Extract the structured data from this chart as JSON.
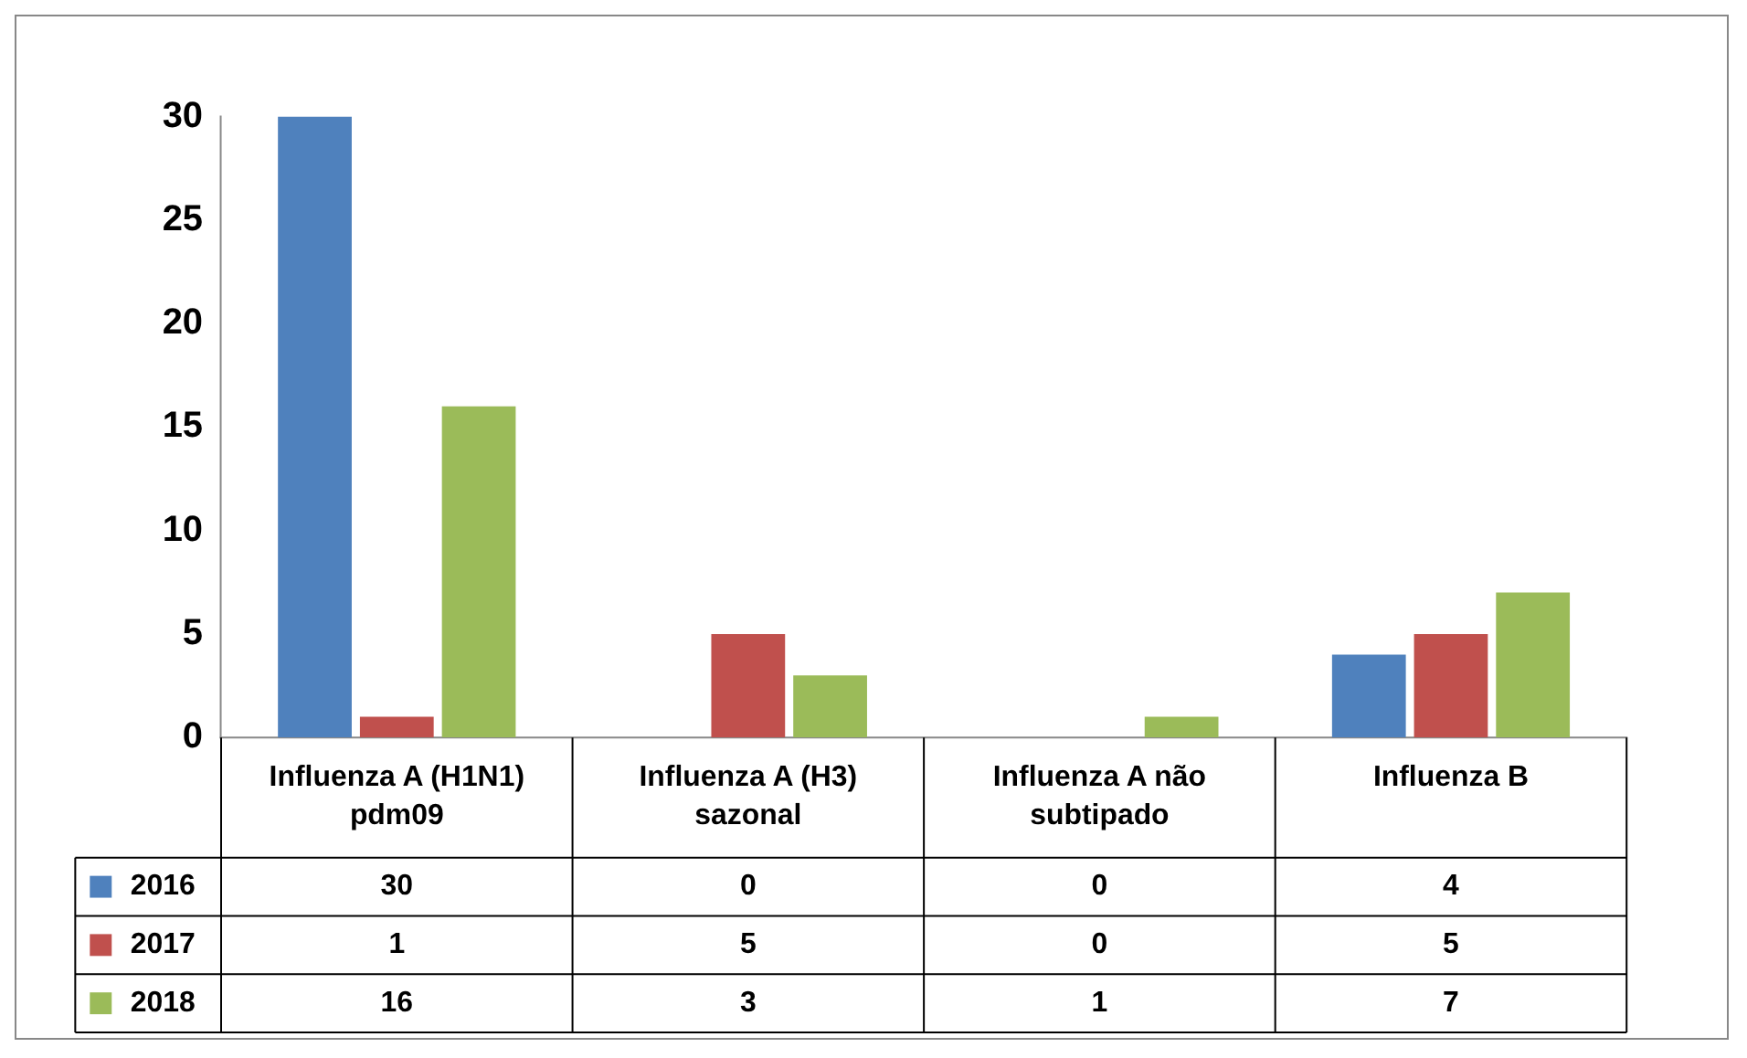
{
  "chart_data": {
    "type": "bar",
    "categories": [
      "Influenza A (H1N1) pdm09",
      "Influenza A (H3) sazonal",
      "Influenza A não subtipado",
      "Influenza B"
    ],
    "series": [
      {
        "name": "2016",
        "color": "#4f81bd",
        "values": [
          30,
          0,
          0,
          4
        ]
      },
      {
        "name": "2017",
        "color": "#c0504d",
        "values": [
          1,
          5,
          0,
          5
        ]
      },
      {
        "name": "2018",
        "color": "#9bbb59",
        "values": [
          16,
          3,
          1,
          7
        ]
      }
    ],
    "ylim": [
      0,
      30
    ],
    "yticks": [
      0,
      5,
      10,
      15,
      20,
      25,
      30
    ],
    "grid": false,
    "legend": "bottom",
    "data_labels": true
  }
}
